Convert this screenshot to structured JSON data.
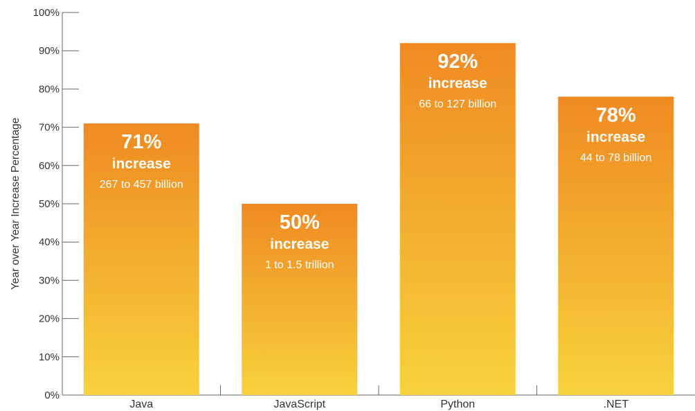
{
  "chart_data": {
    "type": "bar",
    "title": "",
    "xlabel": "",
    "ylabel": "Year over Year Increase Percentage",
    "ylim": [
      0,
      100
    ],
    "yticks": [
      0,
      10,
      20,
      30,
      40,
      50,
      60,
      70,
      80,
      90,
      100
    ],
    "ytick_labels": [
      "0%",
      "10%",
      "20%",
      "30%",
      "40%",
      "50%",
      "60%",
      "70%",
      "80%",
      "90%",
      "100%"
    ],
    "categories": [
      "Java",
      "JavaScript",
      "Python",
      ".NET"
    ],
    "values": [
      71,
      50,
      92,
      78
    ],
    "bar_labels": [
      {
        "percent": "71%",
        "word": "increase",
        "detail": "267 to 457 billion"
      },
      {
        "percent": "50%",
        "word": "increase",
        "detail": "1 to 1.5 trillion"
      },
      {
        "percent": "92%",
        "word": "increase",
        "detail": "66 to 127 billion"
      },
      {
        "percent": "78%",
        "word": "increase",
        "detail": "44 to 78 billion"
      }
    ],
    "grid": false,
    "colors": {
      "bar_top": "#ef8a22",
      "bar_bottom": "#f7d23c",
      "axis": "#666666",
      "text": "#333333",
      "label_text": "#ffffff"
    }
  }
}
